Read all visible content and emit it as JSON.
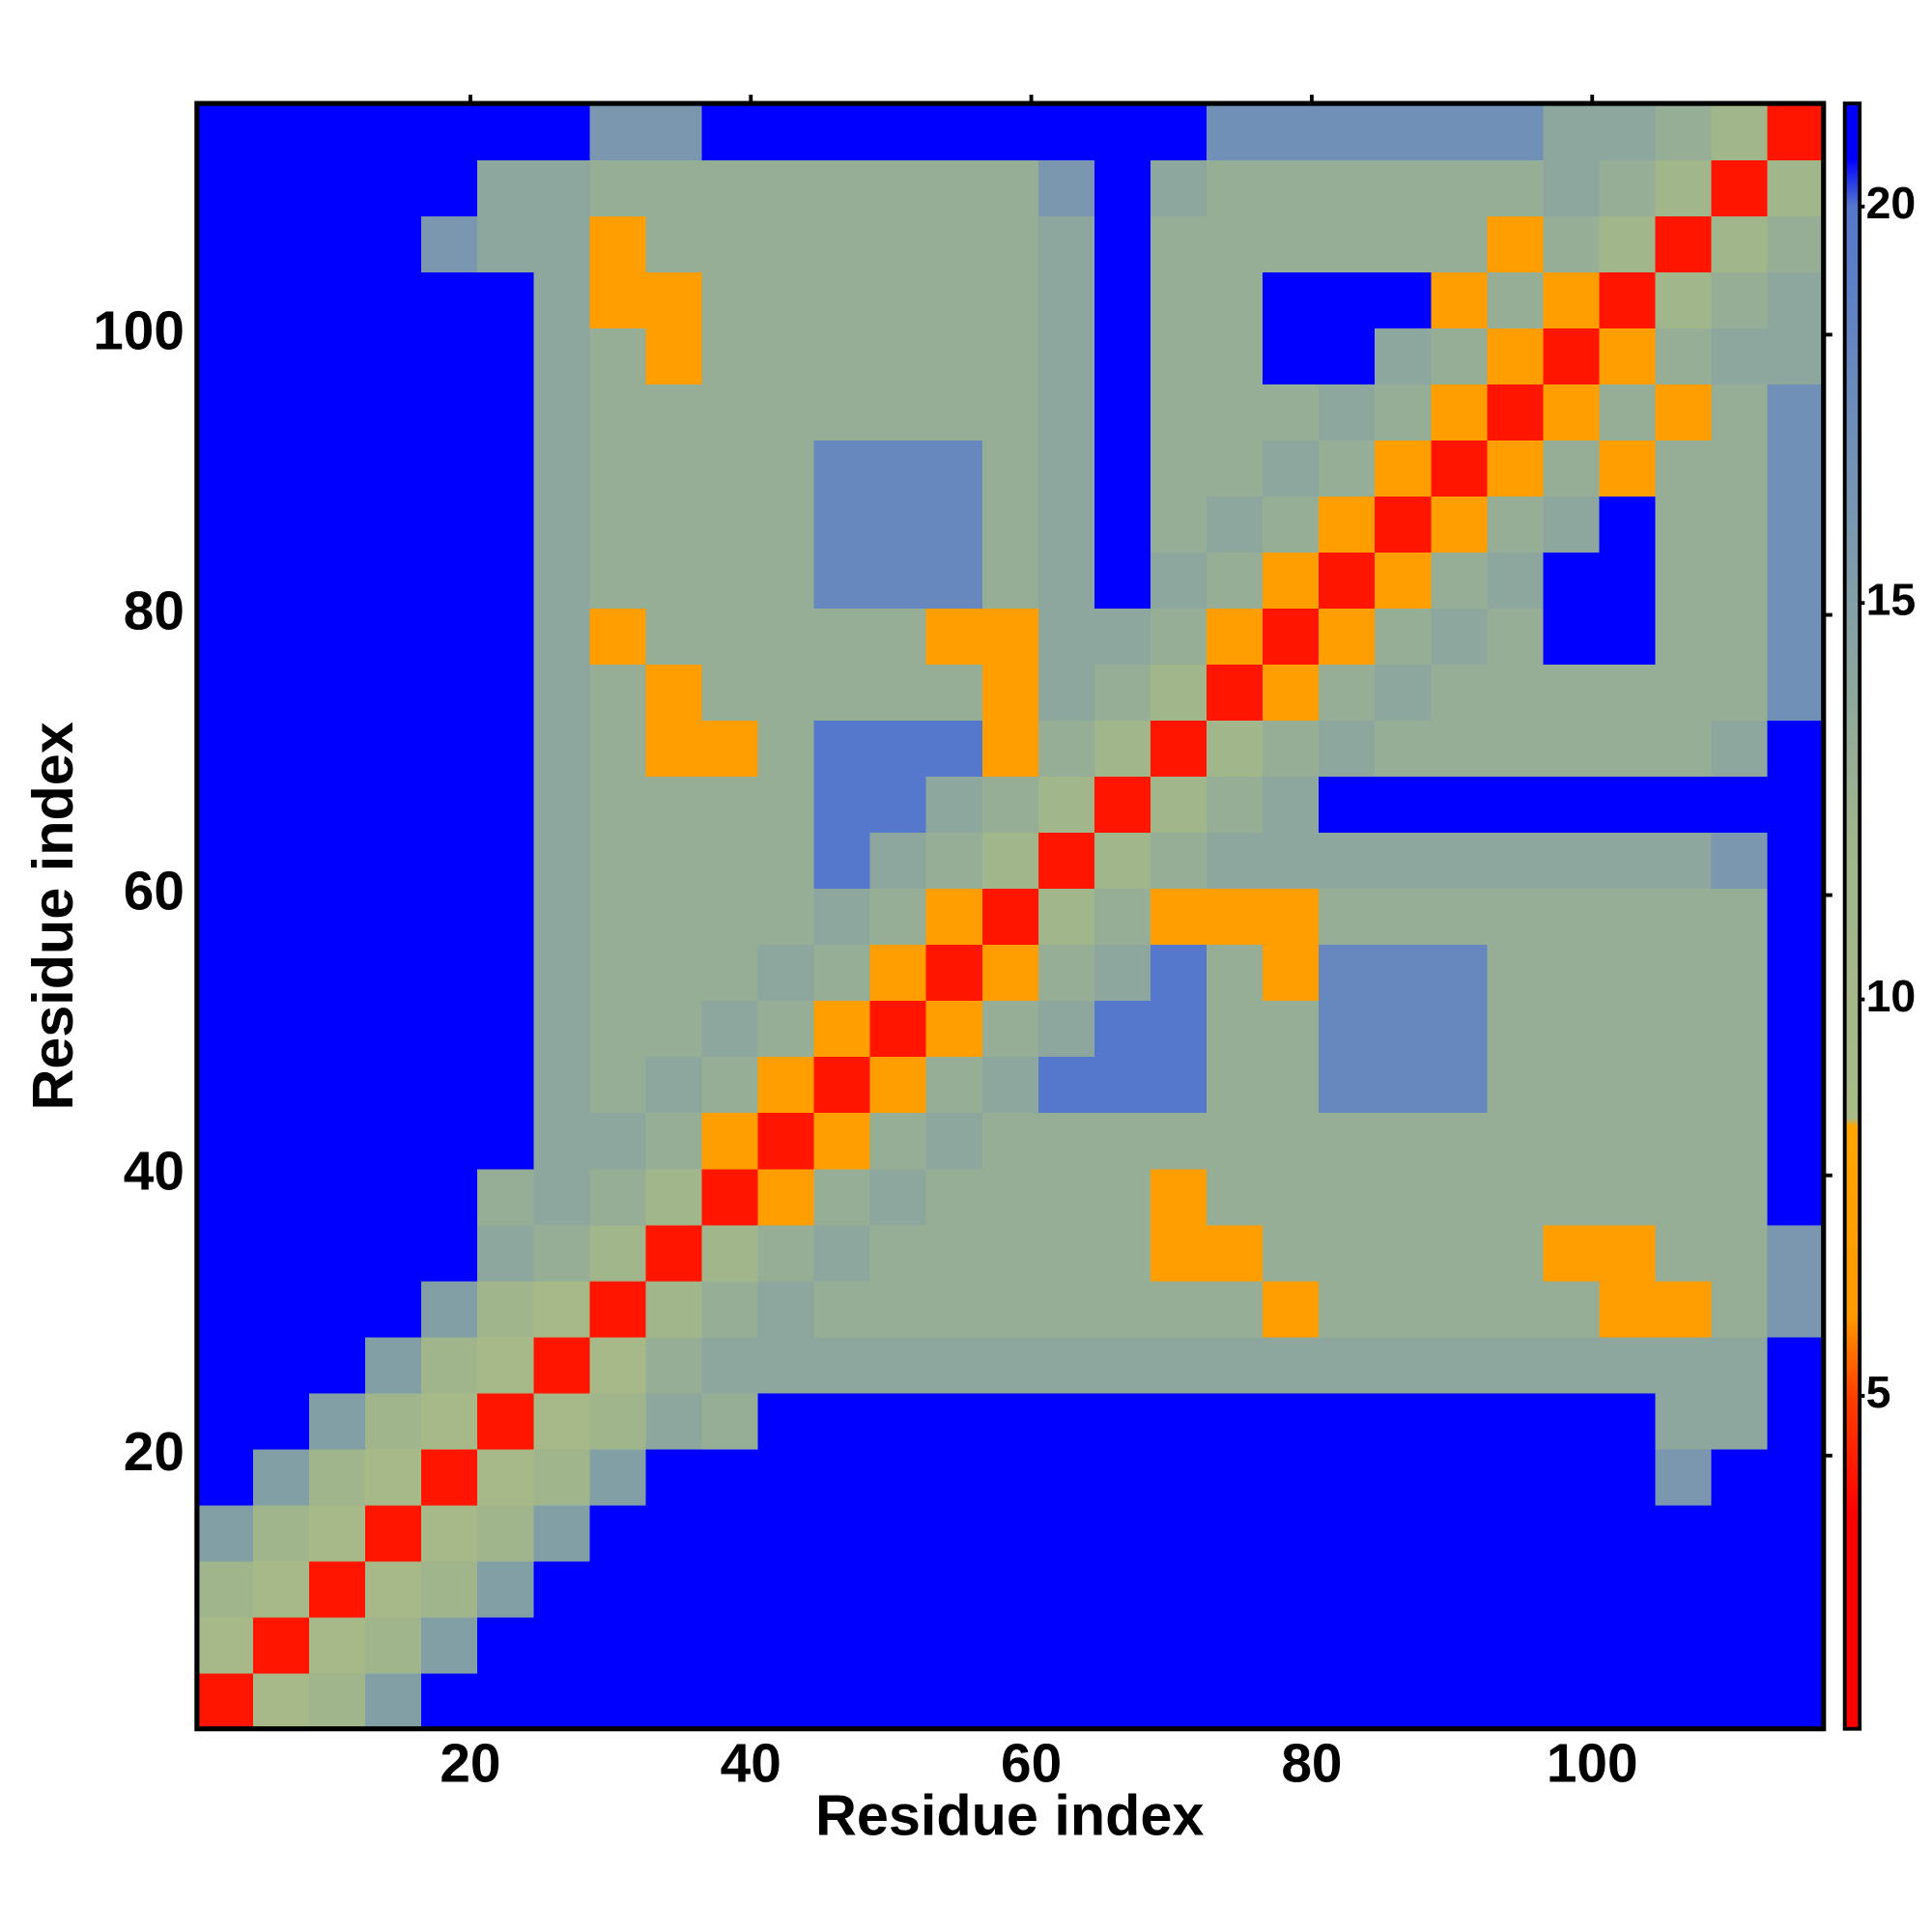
{
  "chart_data": {
    "type": "heatmap",
    "x_label": "Residue index",
    "y_label": "Residue index",
    "xbins": [
      0.5,
      4.5,
      8.5,
      12.5,
      16.5,
      20.5,
      24.5,
      28.5,
      32.5,
      36.5,
      40.5,
      44.5,
      48.5,
      52.5,
      56.5,
      60.5,
      64.5,
      68.5,
      72.5,
      76.5,
      80.5,
      84.5,
      88.5,
      92.5,
      96.5,
      100.5,
      104.5,
      108.5,
      112.5,
      116.5
    ],
    "ybins": [
      0.5,
      4.5,
      8.5,
      12.5,
      16.5,
      20.5,
      24.5,
      28.5,
      32.5,
      36.5,
      40.5,
      44.5,
      48.5,
      52.5,
      56.5,
      60.5,
      64.5,
      68.5,
      72.5,
      76.5,
      80.5,
      84.5,
      88.5,
      92.5,
      96.5,
      100.5,
      104.5,
      108.5,
      112.5,
      116.5
    ],
    "xlim": [
      0.5,
      116.5
    ],
    "ylim": [
      0.5,
      116.5
    ],
    "xticks": [
      20,
      40,
      60,
      80,
      100
    ],
    "yticks": [
      20,
      40,
      60,
      80,
      100
    ],
    "zlim": [
      0.8,
      21.3
    ],
    "zticks": [
      5,
      10,
      15,
      20
    ],
    "colorscale": [
      [
        0.8,
        "#ff0000"
      ],
      [
        3.5,
        "#ff0000"
      ],
      [
        5,
        "#ff4000"
      ],
      [
        6,
        "#ff9900"
      ],
      [
        8.4,
        "#ffa500"
      ],
      [
        8.5,
        "#a8ba88"
      ],
      [
        12,
        "#a0b58c"
      ],
      [
        17,
        "#7090b8"
      ],
      [
        20,
        "#5577cc"
      ],
      [
        20.6,
        "#0000ff"
      ],
      [
        21.3,
        "#0000ff"
      ]
    ],
    "z": [
      [
        4,
        9,
        12,
        15,
        21,
        21,
        21,
        21,
        21,
        21,
        21,
        21,
        21,
        21,
        21,
        21,
        21,
        21,
        21,
        21,
        21,
        21,
        21,
        21,
        21,
        21,
        21,
        21,
        21
      ],
      [
        9,
        4,
        9,
        12,
        15,
        21,
        21,
        21,
        21,
        21,
        21,
        21,
        21,
        21,
        21,
        21,
        21,
        21,
        21,
        21,
        21,
        21,
        21,
        21,
        21,
        21,
        21,
        21,
        21
      ],
      [
        12,
        9,
        4,
        9,
        12,
        15,
        21,
        21,
        21,
        21,
        21,
        21,
        21,
        21,
        21,
        21,
        21,
        21,
        21,
        21,
        21,
        21,
        21,
        21,
        21,
        21,
        21,
        21,
        21
      ],
      [
        15,
        12,
        9,
        4,
        9,
        12,
        15,
        21,
        21,
        21,
        21,
        21,
        21,
        21,
        21,
        21,
        21,
        21,
        21,
        21,
        21,
        21,
        21,
        21,
        21,
        21,
        21,
        21,
        21
      ],
      [
        21,
        15,
        12,
        9,
        4,
        9,
        12,
        15,
        21,
        21,
        21,
        21,
        21,
        21,
        21,
        21,
        21,
        21,
        21,
        21,
        21,
        21,
        21,
        21,
        21,
        21,
        16,
        21,
        21
      ],
      [
        21,
        21,
        15,
        12,
        9,
        4,
        9,
        12,
        14,
        13,
        21,
        21,
        21,
        21,
        21,
        21,
        21,
        21,
        21,
        21,
        21,
        21,
        21,
        21,
        21,
        21,
        14,
        14,
        21
      ],
      [
        21,
        21,
        21,
        15,
        12,
        9,
        4,
        9,
        13,
        14,
        14,
        14,
        14,
        14,
        14,
        14,
        14,
        14,
        14,
        14,
        14,
        14,
        14,
        14,
        14,
        14,
        14,
        14,
        21
      ],
      [
        21,
        21,
        21,
        21,
        15,
        12,
        9,
        4,
        11,
        13,
        14,
        13,
        13,
        13,
        13,
        13,
        13,
        13,
        13,
        7,
        13,
        13,
        13,
        13,
        13,
        7,
        7,
        13,
        16
      ],
      [
        21,
        21,
        21,
        21,
        21,
        14,
        13,
        11,
        4,
        11,
        13,
        14,
        13,
        13,
        13,
        13,
        13,
        7,
        7,
        13,
        13,
        13,
        13,
        13,
        7,
        7,
        13,
        13,
        16
      ],
      [
        21,
        21,
        21,
        21,
        21,
        13,
        14,
        13,
        11,
        4,
        7,
        13,
        14,
        13,
        13,
        13,
        13,
        7,
        13,
        13,
        13,
        13,
        13,
        13,
        13,
        13,
        13,
        13,
        21
      ],
      [
        21,
        21,
        21,
        21,
        21,
        21,
        14,
        14,
        13,
        7,
        4,
        7,
        13,
        14,
        13,
        13,
        13,
        13,
        13,
        13,
        13,
        13,
        13,
        13,
        13,
        13,
        13,
        13,
        21
      ],
      [
        21,
        21,
        21,
        21,
        21,
        21,
        14,
        13,
        14,
        13,
        7,
        4,
        7,
        13,
        14,
        20,
        20,
        20,
        13,
        13,
        18,
        18,
        18,
        13,
        13,
        13,
        13,
        13,
        21
      ],
      [
        21,
        21,
        21,
        21,
        21,
        21,
        14,
        13,
        13,
        14,
        13,
        7,
        4,
        7,
        13,
        14,
        20,
        20,
        13,
        13,
        18,
        18,
        18,
        13,
        13,
        13,
        13,
        13,
        21
      ],
      [
        21,
        21,
        21,
        21,
        21,
        21,
        14,
        13,
        13,
        13,
        14,
        13,
        7,
        4,
        7,
        13,
        14,
        20,
        13,
        7,
        18,
        18,
        18,
        13,
        13,
        13,
        13,
        13,
        21
      ],
      [
        21,
        21,
        21,
        21,
        21,
        21,
        14,
        13,
        13,
        13,
        13,
        14,
        13,
        7,
        4,
        11,
        13,
        7,
        7,
        7,
        13,
        13,
        13,
        13,
        13,
        13,
        13,
        13,
        21
      ],
      [
        21,
        21,
        21,
        21,
        21,
        21,
        14,
        13,
        13,
        13,
        13,
        20,
        14,
        13,
        11,
        4,
        11,
        13,
        14,
        14,
        14,
        14,
        14,
        14,
        14,
        14,
        14,
        16,
        21
      ],
      [
        21,
        21,
        21,
        21,
        21,
        21,
        14,
        13,
        13,
        13,
        13,
        20,
        20,
        14,
        13,
        11,
        4,
        11,
        13,
        14,
        21,
        21,
        21,
        21,
        21,
        21,
        21,
        21,
        21
      ],
      [
        21,
        21,
        21,
        21,
        21,
        21,
        14,
        13,
        7,
        7,
        13,
        20,
        20,
        20,
        7,
        13,
        11,
        4,
        11,
        13,
        14,
        13,
        13,
        13,
        13,
        13,
        13,
        14,
        21
      ],
      [
        21,
        21,
        21,
        21,
        21,
        21,
        14,
        13,
        7,
        13,
        13,
        13,
        13,
        13,
        7,
        14,
        13,
        11,
        4,
        7,
        13,
        14,
        13,
        13,
        13,
        13,
        13,
        13,
        17
      ],
      [
        21,
        21,
        21,
        21,
        21,
        21,
        14,
        7,
        13,
        13,
        13,
        13,
        13,
        7,
        7,
        14,
        14,
        13,
        7,
        4,
        7,
        13,
        14,
        13,
        21,
        21,
        13,
        13,
        17
      ],
      [
        21,
        21,
        21,
        21,
        21,
        21,
        14,
        13,
        13,
        13,
        13,
        18,
        18,
        18,
        13,
        14,
        21,
        14,
        13,
        7,
        4,
        7,
        13,
        14,
        21,
        21,
        13,
        13,
        17
      ],
      [
        21,
        21,
        21,
        21,
        21,
        21,
        14,
        13,
        13,
        13,
        13,
        18,
        18,
        18,
        13,
        14,
        21,
        13,
        14,
        13,
        7,
        4,
        7,
        13,
        14,
        21,
        13,
        13,
        17
      ],
      [
        21,
        21,
        21,
        21,
        21,
        21,
        14,
        13,
        13,
        13,
        13,
        18,
        18,
        18,
        13,
        14,
        21,
        13,
        13,
        14,
        13,
        7,
        4,
        7,
        13,
        7,
        13,
        13,
        17
      ],
      [
        21,
        21,
        21,
        21,
        21,
        21,
        14,
        13,
        13,
        13,
        13,
        13,
        13,
        13,
        13,
        14,
        21,
        13,
        13,
        13,
        14,
        13,
        7,
        4,
        7,
        13,
        7,
        13,
        17
      ],
      [
        21,
        21,
        21,
        21,
        21,
        21,
        14,
        13,
        7,
        13,
        13,
        13,
        13,
        13,
        13,
        14,
        21,
        13,
        13,
        21,
        21,
        14,
        13,
        7,
        4,
        7,
        13,
        14,
        14
      ],
      [
        21,
        21,
        21,
        21,
        21,
        21,
        14,
        7,
        7,
        13,
        13,
        13,
        13,
        13,
        13,
        14,
        21,
        13,
        13,
        21,
        21,
        21,
        7,
        13,
        7,
        4,
        11,
        13,
        14
      ],
      [
        21,
        21,
        21,
        21,
        16,
        14,
        14,
        7,
        13,
        13,
        13,
        13,
        13,
        13,
        13,
        14,
        21,
        13,
        13,
        13,
        13,
        13,
        13,
        7,
        13,
        11,
        4,
        11,
        13
      ],
      [
        21,
        21,
        21,
        21,
        21,
        14,
        14,
        13,
        13,
        13,
        13,
        13,
        13,
        13,
        13,
        16,
        21,
        14,
        13,
        13,
        13,
        13,
        13,
        13,
        14,
        13,
        11,
        4,
        11
      ],
      [
        21,
        21,
        21,
        21,
        21,
        21,
        21,
        16,
        16,
        21,
        21,
        21,
        21,
        21,
        21,
        21,
        21,
        21,
        17,
        17,
        17,
        17,
        17,
        17,
        14,
        14,
        13,
        11,
        4
      ]
    ]
  }
}
